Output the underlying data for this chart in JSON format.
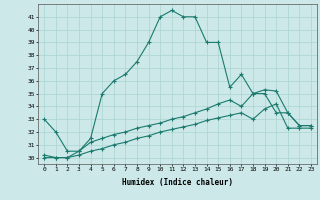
{
  "xlabel": "Humidex (Indice chaleur)",
  "background_color": "#cce8e8",
  "grid_color": "#aad4d0",
  "line_color": "#1a7a6e",
  "xlim": [
    -0.5,
    23.5
  ],
  "ylim": [
    29.5,
    42.0
  ],
  "yticks": [
    30,
    31,
    32,
    33,
    34,
    35,
    36,
    37,
    38,
    39,
    40,
    41
  ],
  "xticks": [
    0,
    1,
    2,
    3,
    4,
    5,
    6,
    7,
    8,
    9,
    10,
    11,
    12,
    13,
    14,
    15,
    16,
    17,
    18,
    19,
    20,
    21,
    22,
    23
  ],
  "line1_x": [
    0,
    1,
    2,
    3,
    4,
    5,
    6,
    7,
    8,
    9,
    10,
    11,
    12,
    13,
    14,
    15,
    16,
    17,
    18,
    19,
    20,
    21,
    22,
    23
  ],
  "line1_y": [
    33.0,
    32.0,
    30.5,
    30.5,
    31.5,
    35.0,
    36.0,
    36.5,
    37.5,
    39.0,
    41.0,
    41.5,
    41.0,
    41.0,
    39.0,
    39.0,
    35.5,
    36.5,
    35.0,
    35.0,
    33.5,
    33.5,
    32.5,
    32.5
  ],
  "line2_x": [
    0,
    1,
    2,
    3,
    4,
    5,
    6,
    7,
    8,
    9,
    10,
    11,
    12,
    13,
    14,
    15,
    16,
    17,
    18,
    19,
    20,
    21,
    22,
    23
  ],
  "line2_y": [
    30.2,
    30.0,
    30.0,
    30.5,
    31.2,
    31.5,
    31.8,
    32.0,
    32.3,
    32.5,
    32.7,
    33.0,
    33.2,
    33.5,
    33.8,
    34.2,
    34.5,
    34.0,
    35.0,
    35.3,
    35.2,
    33.5,
    32.5,
    32.5
  ],
  "line3_x": [
    0,
    1,
    2,
    3,
    4,
    5,
    6,
    7,
    8,
    9,
    10,
    11,
    12,
    13,
    14,
    15,
    16,
    17,
    18,
    19,
    20,
    21,
    22,
    23
  ],
  "line3_y": [
    30.0,
    30.0,
    30.0,
    30.2,
    30.5,
    30.7,
    31.0,
    31.2,
    31.5,
    31.7,
    32.0,
    32.2,
    32.4,
    32.6,
    32.9,
    33.1,
    33.3,
    33.5,
    33.0,
    33.8,
    34.2,
    32.3,
    32.3,
    32.3
  ]
}
